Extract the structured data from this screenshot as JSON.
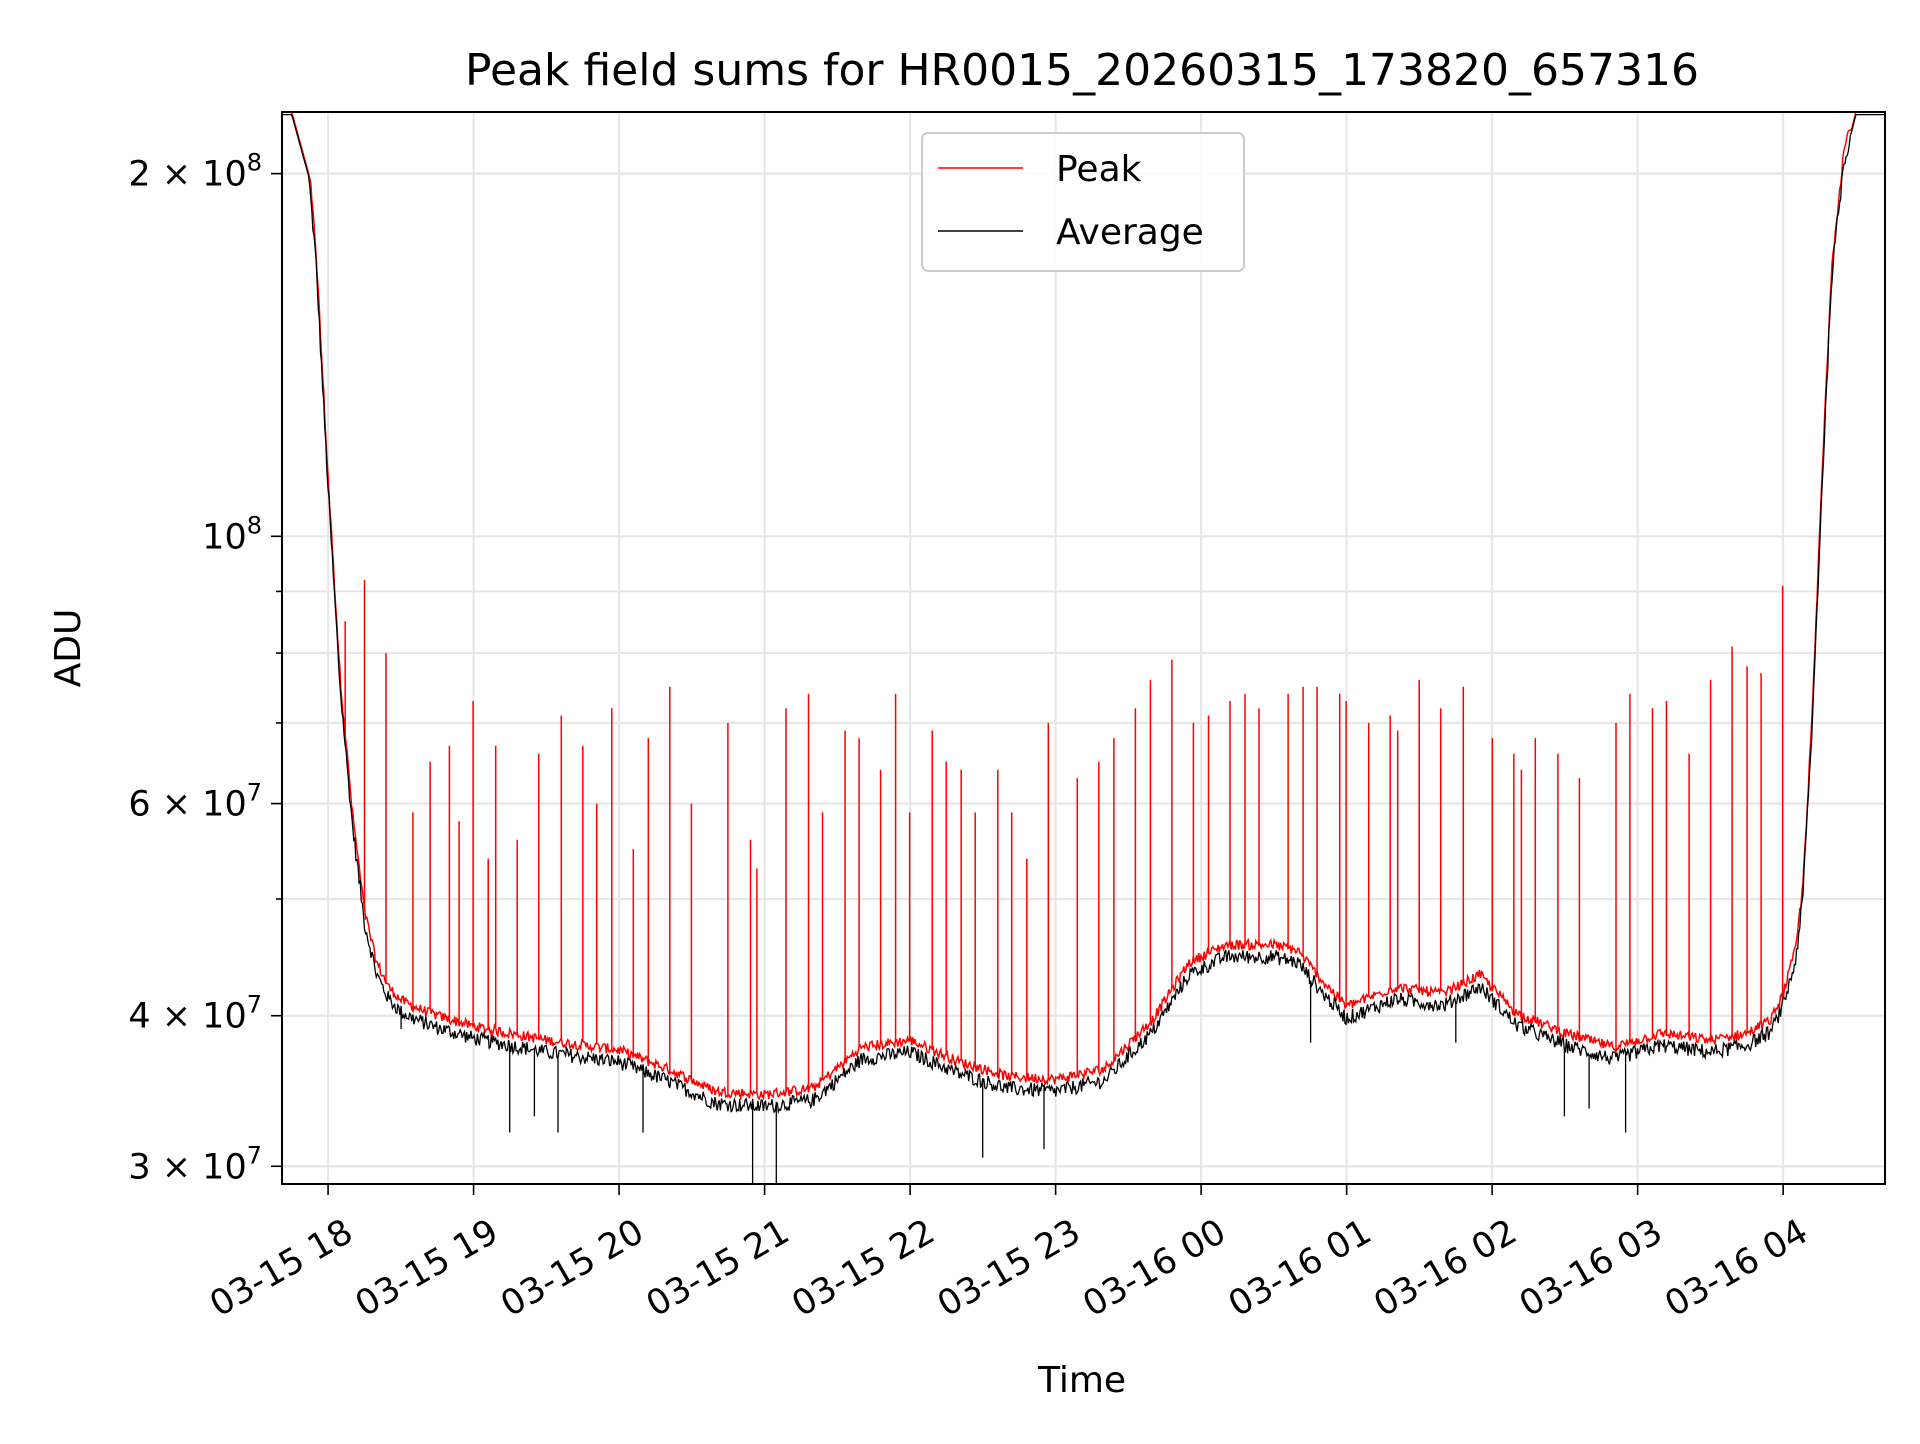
{
  "chart_data": {
    "type": "line",
    "title": "Peak field sums for HR0015_20260315_173820_657316",
    "xlabel": "Time",
    "ylabel": "ADU",
    "yscale": "log",
    "xlim": [
      "2026-03-15 17:41",
      "2026-03-16 04:42"
    ],
    "ylim": [
      29000000,
      225000000
    ],
    "grid": true,
    "legend": "upper-center",
    "x_ticks": [
      "03-15 18",
      "03-15 19",
      "03-15 20",
      "03-15 21",
      "03-15 22",
      "03-15 23",
      "03-16 00",
      "03-16 01",
      "03-16 02",
      "03-16 03",
      "03-16 04"
    ],
    "y_ticks": [
      {
        "value": 30000000,
        "mantissa": "3",
        "exp": "7",
        "label": "3 × 10^7"
      },
      {
        "value": 40000000,
        "mantissa": "4",
        "exp": "7",
        "label": "4 × 10^7"
      },
      {
        "value": 60000000,
        "mantissa": "6",
        "exp": "7",
        "label": "6 × 10^7"
      },
      {
        "value": 100000000,
        "mantissa": "",
        "exp": "8",
        "label": "10^8"
      },
      {
        "value": 200000000,
        "mantissa": "2",
        "exp": "8",
        "label": "2 × 10^8"
      }
    ],
    "baseline_x": [
      "2026-03-15 17:40",
      "2026-03-15 17:45",
      "2026-03-15 17:52",
      "2026-03-15 17:55",
      "2026-03-15 18:00",
      "2026-03-15 18:05",
      "2026-03-15 18:10",
      "2026-03-15 18:15",
      "2026-03-15 18:20",
      "2026-03-15 18:25",
      "2026-03-15 18:30",
      "2026-03-15 18:35",
      "2026-03-15 18:45",
      "2026-03-15 19:00",
      "2026-03-15 19:30",
      "2026-03-15 20:00",
      "2026-03-15 20:20",
      "2026-03-15 20:40",
      "2026-03-15 21:00",
      "2026-03-15 21:20",
      "2026-03-15 21:40",
      "2026-03-15 22:00",
      "2026-03-15 22:20",
      "2026-03-15 22:40",
      "2026-03-15 23:00",
      "2026-03-15 23:20",
      "2026-03-15 23:40",
      "2026-03-15 23:55",
      "2026-03-16 00:10",
      "2026-03-16 00:30",
      "2026-03-16 00:40",
      "2026-03-16 00:50",
      "2026-03-16 01:00",
      "2026-03-16 01:20",
      "2026-03-16 01:40",
      "2026-03-16 01:55",
      "2026-03-16 02:10",
      "2026-03-16 02:30",
      "2026-03-16 02:50",
      "2026-03-16 03:10",
      "2026-03-16 03:30",
      "2026-03-16 03:45",
      "2026-03-16 03:55",
      "2026-03-16 04:00",
      "2026-03-16 04:05",
      "2026-03-16 04:08",
      "2026-03-16 04:12",
      "2026-03-16 04:16",
      "2026-03-16 04:20",
      "2026-03-16 04:25",
      "2026-03-16 04:30",
      "2026-03-16 04:45"
    ],
    "baseline_y": [
      225000000,
      225000000,
      200000000,
      170000000,
      110000000,
      75000000,
      58000000,
      48000000,
      43500000,
      41500000,
      40500000,
      40000000,
      39300000,
      38500000,
      37500000,
      36800000,
      35500000,
      34000000,
      33800000,
      34200000,
      37000000,
      37500000,
      36000000,
      35000000,
      34800000,
      35500000,
      39000000,
      43500000,
      45000000,
      45000000,
      44500000,
      42000000,
      40000000,
      41500000,
      41000000,
      42500000,
      39500000,
      38000000,
      37000000,
      38000000,
      37500000,
      38000000,
      39000000,
      41000000,
      44500000,
      50000000,
      70000000,
      110000000,
      165000000,
      205000000,
      225000000,
      225000000
    ],
    "series": [
      {
        "name": "Peak",
        "color": "#ff0000",
        "spike_x": [
          "2026-03-15 18:07",
          "2026-03-15 18:15",
          "2026-03-15 18:24",
          "2026-03-15 18:35",
          "2026-03-15 18:42",
          "2026-03-15 18:50",
          "2026-03-15 18:54",
          "2026-03-15 19:00",
          "2026-03-15 19:06",
          "2026-03-15 19:09",
          "2026-03-15 19:18",
          "2026-03-15 19:27",
          "2026-03-15 19:36",
          "2026-03-15 19:45",
          "2026-03-15 19:51",
          "2026-03-15 19:57",
          "2026-03-15 20:06",
          "2026-03-15 20:12",
          "2026-03-15 20:21",
          "2026-03-15 20:30",
          "2026-03-15 20:45",
          "2026-03-15 20:54",
          "2026-03-15 20:57",
          "2026-03-15 21:09",
          "2026-03-15 21:18",
          "2026-03-15 21:24",
          "2026-03-15 21:33",
          "2026-03-15 21:39",
          "2026-03-15 21:48",
          "2026-03-15 21:54",
          "2026-03-15 22:00",
          "2026-03-15 22:09",
          "2026-03-15 22:15",
          "2026-03-15 22:21",
          "2026-03-15 22:27",
          "2026-03-15 22:36",
          "2026-03-15 22:42",
          "2026-03-15 22:48",
          "2026-03-15 22:57",
          "2026-03-15 23:09",
          "2026-03-15 23:18",
          "2026-03-15 23:24",
          "2026-03-15 23:33",
          "2026-03-15 23:39",
          "2026-03-15 23:48",
          "2026-03-15 23:57",
          "2026-03-16 00:03",
          "2026-03-16 00:12",
          "2026-03-16 00:18",
          "2026-03-16 00:24",
          "2026-03-16 00:36",
          "2026-03-16 00:42",
          "2026-03-16 00:48",
          "2026-03-16 00:57",
          "2026-03-16 01:00",
          "2026-03-16 01:09",
          "2026-03-16 01:18",
          "2026-03-16 01:21",
          "2026-03-16 01:30",
          "2026-03-16 01:39",
          "2026-03-16 01:48",
          "2026-03-16 02:00",
          "2026-03-16 02:09",
          "2026-03-16 02:12",
          "2026-03-16 02:18",
          "2026-03-16 02:27",
          "2026-03-16 02:36",
          "2026-03-16 02:51",
          "2026-03-16 02:57",
          "2026-03-16 03:06",
          "2026-03-16 03:12",
          "2026-03-16 03:21",
          "2026-03-16 03:30",
          "2026-03-16 03:39",
          "2026-03-16 03:45",
          "2026-03-16 03:51",
          "2026-03-16 04:00"
        ],
        "spike_y": [
          85000000,
          92000000,
          80000000,
          59000000,
          65000000,
          67000000,
          58000000,
          73000000,
          54000000,
          67000000,
          56000000,
          66000000,
          71000000,
          67000000,
          60000000,
          72000000,
          55000000,
          68000000,
          75000000,
          60000000,
          70000000,
          56000000,
          53000000,
          72000000,
          74000000,
          59000000,
          69000000,
          68000000,
          64000000,
          74000000,
          59000000,
          69000000,
          65000000,
          64000000,
          59000000,
          64000000,
          59000000,
          54000000,
          70000000,
          63000000,
          65000000,
          68000000,
          72000000,
          76000000,
          79000000,
          70000000,
          71000000,
          73000000,
          74000000,
          72000000,
          74000000,
          75000000,
          75000000,
          74000000,
          73000000,
          70000000,
          71000000,
          69000000,
          76000000,
          72000000,
          75000000,
          68000000,
          66000000,
          64000000,
          68000000,
          66000000,
          63000000,
          70000000,
          74000000,
          72000000,
          73000000,
          66000000,
          76000000,
          81000000,
          78000000,
          77000000,
          91000000
        ]
      },
      {
        "name": "Average",
        "color": "#000000",
        "dip_x": [
          "2026-03-15 18:30",
          "2026-03-15 19:15",
          "2026-03-15 19:25",
          "2026-03-15 19:35",
          "2026-03-15 20:10",
          "2026-03-15 20:55",
          "2026-03-15 21:05",
          "2026-03-15 22:30",
          "2026-03-15 22:55",
          "2026-03-16 00:45",
          "2026-03-16 01:45",
          "2026-03-16 02:30",
          "2026-03-16 02:40",
          "2026-03-16 02:55"
        ],
        "dip_y": [
          39000000,
          32000000,
          33000000,
          32000000,
          32000000,
          29000000,
          29000000,
          30500000,
          31000000,
          38000000,
          38000000,
          33000000,
          33500000,
          32000000
        ]
      }
    ]
  }
}
